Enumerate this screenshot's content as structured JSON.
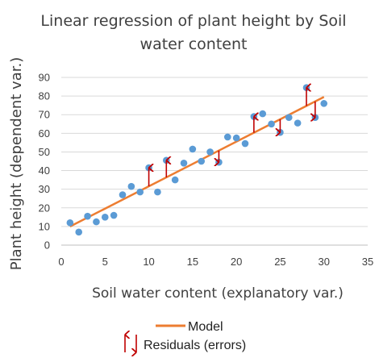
{
  "chart_data": {
    "type": "scatter",
    "title": [
      "Linear regression of plant height by Soil",
      "water content"
    ],
    "xlabel": "Soil water content (explanatory var.)",
    "ylabel": "Plant height (dependent var.)",
    "xlim": [
      0,
      35
    ],
    "ylim": [
      0,
      90
    ],
    "x_ticks": [
      0,
      5,
      10,
      15,
      20,
      25,
      30,
      35
    ],
    "y_ticks": [
      0,
      10,
      20,
      30,
      40,
      50,
      60,
      70,
      80,
      90
    ],
    "grid": "horizontal",
    "point_color": "#5b9bd5",
    "model_color": "#ed7d31",
    "residual_color": "#c00000",
    "model": {
      "x": [
        1,
        30
      ],
      "y": [
        10,
        79.5
      ]
    },
    "points": {
      "x": [
        1,
        2,
        3,
        4,
        5,
        6,
        7,
        8,
        9,
        10,
        11,
        12,
        13,
        14,
        15,
        16,
        17,
        18,
        19,
        20,
        21,
        22,
        23,
        24,
        25,
        26,
        27,
        28,
        29,
        30
      ],
      "y": [
        12,
        7,
        15.5,
        12.5,
        15,
        16,
        27,
        31.5,
        28.5,
        41.5,
        28.5,
        45.5,
        35,
        44,
        51.5,
        45,
        50,
        44.5,
        58,
        57.5,
        54.5,
        69,
        70.5,
        65,
        60.5,
        68.5,
        65.5,
        84.5,
        68.5,
        76
      ]
    },
    "residuals": [
      {
        "x": 10,
        "direction": "up"
      },
      {
        "x": 12,
        "direction": "up"
      },
      {
        "x": 18,
        "direction": "down"
      },
      {
        "x": 22,
        "direction": "up"
      },
      {
        "x": 25,
        "direction": "down"
      },
      {
        "x": 28,
        "direction": "up"
      },
      {
        "x": 29,
        "direction": "down"
      }
    ],
    "legend": {
      "model_label": "Model",
      "residuals_label": "Residuals (errors)"
    }
  }
}
